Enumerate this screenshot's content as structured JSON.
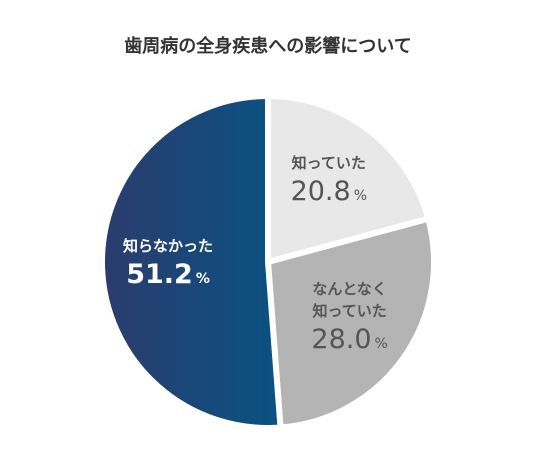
{
  "chart_data": {
    "type": "pie",
    "title": "歯周病の全身疾患への影響について",
    "categories": [
      "知っていた",
      "なんとなく\n知っていた",
      "知らなかった"
    ],
    "values": [
      20.8,
      28.0,
      51.2
    ],
    "value_labels": [
      "20.8",
      "28.0",
      "51.2"
    ],
    "value_unit": "%",
    "colors": [
      "#e8e8e8",
      "#b4b4b4",
      "#1c4a79"
    ]
  }
}
